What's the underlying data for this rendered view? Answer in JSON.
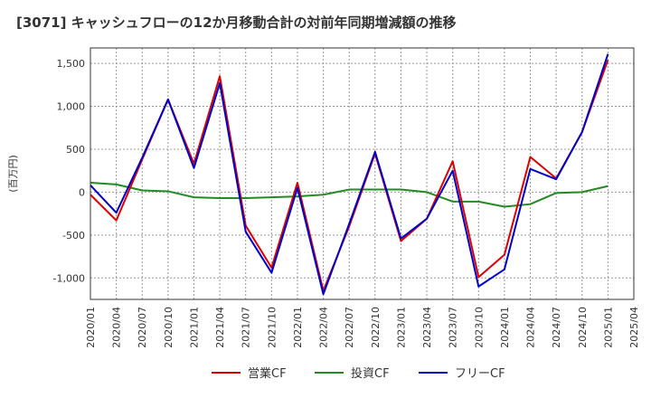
{
  "chart_data": {
    "type": "line",
    "title": "[3071]  キャッシュフローの12か月移動合計の対前年同期増減額の推移",
    "ylabel": "(百万円)",
    "xlabel": "",
    "ylim": [
      -1250,
      1680
    ],
    "yticks": [
      1500,
      1000,
      500,
      0,
      -500,
      -1000
    ],
    "ytick_labels": [
      "1,500",
      "1,000",
      "500",
      "0",
      "-500",
      "-1,000"
    ],
    "x_tick_labels": [
      "2020/01",
      "2020/04",
      "2020/07",
      "2020/10",
      "2021/01",
      "2021/04",
      "2021/07",
      "2021/10",
      "2022/01",
      "2022/04",
      "2022/07",
      "2022/10",
      "2023/01",
      "2023/04",
      "2023/07",
      "2023/10",
      "2024/01",
      "2024/04",
      "2024/07",
      "2024/10",
      "2025/01",
      "2025/04"
    ],
    "x": [
      "2020/01",
      "2020/04",
      "2020/07",
      "2020/10",
      "2021/01",
      "2021/04",
      "2021/07",
      "2021/10",
      "2022/01",
      "2022/04",
      "2022/07",
      "2022/10",
      "2023/01",
      "2023/04",
      "2023/07",
      "2023/10",
      "2024/01",
      "2024/04",
      "2024/07",
      "2024/10",
      "2025/01"
    ],
    "grid": true,
    "legend_position": "bottom",
    "series": [
      {
        "name": "営業CF",
        "color": "#dd0000",
        "values": [
          -30,
          -330,
          380,
          1080,
          330,
          1350,
          -390,
          -880,
          110,
          -1150,
          -400,
          450,
          -570,
          -310,
          360,
          -990,
          -730,
          410,
          160,
          700,
          1540
        ]
      },
      {
        "name": "投資CF",
        "color": "#228b22",
        "values": [
          110,
          90,
          20,
          10,
          -60,
          -70,
          -70,
          -60,
          -50,
          -30,
          30,
          30,
          30,
          0,
          -110,
          -110,
          -170,
          -140,
          -10,
          0,
          70
        ]
      },
      {
        "name": "フリーCF",
        "color": "#0000cc",
        "values": [
          80,
          -240,
          400,
          1080,
          280,
          1270,
          -460,
          -940,
          50,
          -1190,
          -370,
          470,
          -540,
          -310,
          250,
          -1100,
          -900,
          270,
          150,
          700,
          1610
        ]
      }
    ]
  }
}
